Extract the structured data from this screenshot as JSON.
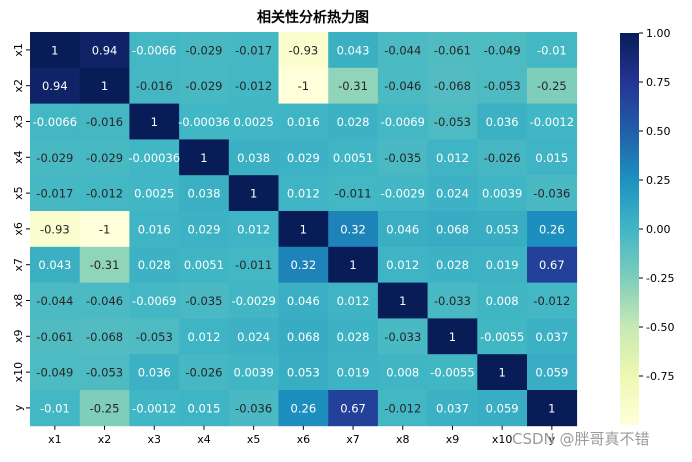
{
  "chart_data": {
    "type": "heatmap",
    "title": "相关性分析热力图",
    "rows": [
      "x1",
      "x2",
      "x3",
      "x4",
      "x5",
      "x6",
      "x7",
      "x8",
      "x9",
      "x10",
      "y"
    ],
    "cols": [
      "x1",
      "x2",
      "x3",
      "x4",
      "x5",
      "x6",
      "x7",
      "x8",
      "x9",
      "x10",
      "y"
    ],
    "values": [
      [
        1,
        0.94,
        -0.0066,
        -0.029,
        -0.017,
        -0.93,
        0.043,
        -0.044,
        -0.061,
        -0.049,
        -0.01
      ],
      [
        0.94,
        1,
        -0.016,
        -0.029,
        -0.012,
        -1,
        -0.31,
        -0.046,
        -0.068,
        -0.053,
        -0.25
      ],
      [
        -0.0066,
        -0.016,
        1,
        -0.00036,
        0.0025,
        0.016,
        0.028,
        -0.0069,
        -0.053,
        0.036,
        -0.0012
      ],
      [
        -0.029,
        -0.029,
        -0.00036,
        1,
        0.038,
        0.029,
        0.0051,
        -0.035,
        0.012,
        -0.026,
        0.015
      ],
      [
        -0.017,
        -0.012,
        0.0025,
        0.038,
        1,
        0.012,
        -0.011,
        -0.0029,
        0.024,
        0.0039,
        -0.036
      ],
      [
        -0.93,
        -1,
        0.016,
        0.029,
        0.012,
        1,
        0.32,
        0.046,
        0.068,
        0.053,
        0.26
      ],
      [
        0.043,
        -0.31,
        0.028,
        0.0051,
        -0.011,
        0.32,
        1,
        0.012,
        0.028,
        0.019,
        0.67
      ],
      [
        -0.044,
        -0.046,
        -0.0069,
        -0.035,
        -0.0029,
        0.046,
        0.012,
        1,
        -0.033,
        0.008,
        -0.012
      ],
      [
        -0.061,
        -0.068,
        -0.053,
        0.012,
        0.024,
        0.068,
        0.028,
        -0.033,
        1,
        -0.0055,
        0.037
      ],
      [
        -0.049,
        -0.053,
        0.036,
        -0.026,
        0.0039,
        0.053,
        0.019,
        0.008,
        -0.0055,
        1,
        0.059
      ],
      [
        -0.01,
        -0.25,
        -0.0012,
        0.015,
        -0.036,
        0.26,
        0.67,
        -0.012,
        0.037,
        0.059,
        1
      ]
    ],
    "cell_labels": [
      [
        "1",
        "0.94",
        "-0.0066",
        "-0.029",
        "-0.017",
        "-0.93",
        "0.043",
        "-0.044",
        "-0.061",
        "-0.049",
        "-0.01"
      ],
      [
        "0.94",
        "1",
        "-0.016",
        "-0.029",
        "-0.012",
        "-1",
        "-0.31",
        "-0.046",
        "-0.068",
        "-0.053",
        "-0.25"
      ],
      [
        "-0.0066",
        "-0.016",
        "1",
        "-0.00036",
        "0.0025",
        "0.016",
        "0.028",
        "-0.0069",
        "-0.053",
        "0.036",
        "-0.0012"
      ],
      [
        "-0.029",
        "-0.029",
        "-0.00036",
        "1",
        "0.038",
        "0.029",
        "0.0051",
        "-0.035",
        "0.012",
        "-0.026",
        "0.015"
      ],
      [
        "-0.017",
        "-0.012",
        "0.0025",
        "0.038",
        "1",
        "0.012",
        "-0.011",
        "-0.0029",
        "0.024",
        "0.0039",
        "-0.036"
      ],
      [
        "-0.93",
        "-1",
        "0.016",
        "0.029",
        "0.012",
        "1",
        "0.32",
        "0.046",
        "0.068",
        "0.053",
        "0.26"
      ],
      [
        "0.043",
        "-0.31",
        "0.028",
        "0.0051",
        "-0.011",
        "0.32",
        "1",
        "0.012",
        "0.028",
        "0.019",
        "0.67"
      ],
      [
        "-0.044",
        "-0.046",
        "-0.0069",
        "-0.035",
        "-0.0029",
        "0.046",
        "0.012",
        "1",
        "-0.033",
        "0.008",
        "-0.012"
      ],
      [
        "-0.061",
        "-0.068",
        "-0.053",
        "0.012",
        "0.024",
        "0.068",
        "0.028",
        "-0.033",
        "1",
        "-0.0055",
        "0.037"
      ],
      [
        "-0.049",
        "-0.053",
        "0.036",
        "-0.026",
        "0.0039",
        "0.053",
        "0.019",
        "0.008",
        "-0.0055",
        "1",
        "0.059"
      ],
      [
        "-0.01",
        "-0.25",
        "-0.0012",
        "0.015",
        "-0.036",
        "0.26",
        "0.67",
        "-0.012",
        "0.037",
        "0.059",
        "1"
      ]
    ],
    "colormap": "YlGnBu",
    "vmin": -1,
    "vmax": 1,
    "colorbar_ticks": [
      "1.00",
      "0.75",
      "0.50",
      "0.25",
      "0.00",
      "-0.25",
      "-0.50",
      "-0.75"
    ],
    "colorbar_tick_values": [
      1.0,
      0.75,
      0.5,
      0.25,
      0.0,
      -0.25,
      -0.5,
      -0.75
    ]
  },
  "watermark": "CSDN @胖哥真不错"
}
